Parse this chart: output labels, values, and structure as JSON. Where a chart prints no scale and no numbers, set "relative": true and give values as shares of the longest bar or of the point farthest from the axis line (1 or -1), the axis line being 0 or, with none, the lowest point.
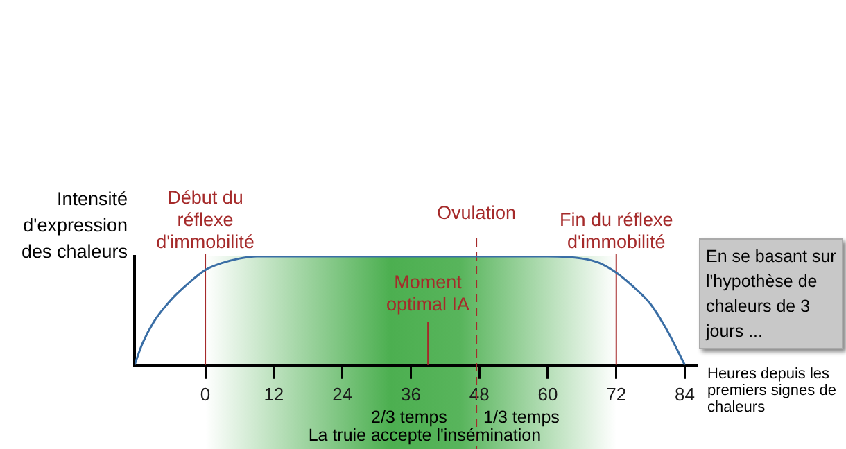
{
  "chart_data": {
    "type": "line",
    "relative": true,
    "ylabel": "Intensité d'expression des chaleurs",
    "xlabel": "Heures depuis les premiers signes de chaleurs",
    "x": [
      -12.4,
      -11,
      -9,
      -6,
      -3,
      0,
      3,
      6,
      9,
      60,
      66,
      69,
      72,
      75,
      78,
      81,
      84
    ],
    "series": [
      {
        "color": "#3a6ea5",
        "values": [
          0,
          0.2,
          0.4,
          0.6,
          0.75,
          0.875,
          0.94,
          0.98,
          1,
          1,
          0.98,
          0.94,
          0.85,
          0.72,
          0.56,
          0.31,
          0
        ]
      }
    ],
    "xlim": [
      -12.4,
      86
    ],
    "xticks": [
      0,
      12,
      24,
      36,
      48,
      60,
      72,
      84
    ],
    "ref_lines": [
      {
        "axis": "x",
        "value": 0,
        "label": "Début du réflexe d'immobilité",
        "color": "#a52a2a"
      },
      {
        "axis": "x",
        "value": 39,
        "label": "Moment optimal IA",
        "color": "#a52a2a"
      },
      {
        "axis": "x",
        "value": 47.5,
        "label": "Ovulation",
        "color": "#a52a2a",
        "line_style": "dashed"
      },
      {
        "axis": "x",
        "value": 72,
        "label": "Fin du réflexe d'immobilité",
        "color": "#a52a2a"
      }
    ],
    "bands": [
      {
        "axis": "x",
        "from": 0,
        "to": 72,
        "label": "La truie accepte l'insémination",
        "color": "#4caf50"
      }
    ],
    "annotations": [
      "2/3 temps",
      "1/3 temps",
      "En se basant sur l'hypothèse de chaleurs de 3 jours ..."
    ],
    "grid": false,
    "legend": false,
    "marker": "none",
    "line_style": "solid"
  }
}
